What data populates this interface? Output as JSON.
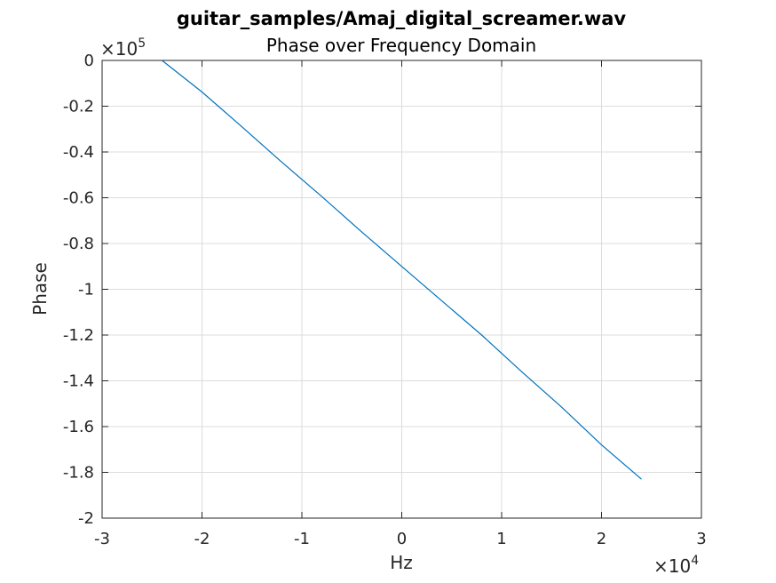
{
  "chart_data": {
    "type": "line",
    "title": "guitar_samples/Amaj_digital_screamer.wav",
    "subtitle": "Phase over Frequency Domain",
    "xlabel": "Hz",
    "ylabel": "Phase",
    "xlim": [
      -30000,
      30000
    ],
    "ylim": [
      -200000,
      0
    ],
    "x_ticks": [
      -30000,
      -20000,
      -10000,
      0,
      10000,
      20000,
      30000
    ],
    "x_tick_labels": [
      "-3",
      "-2",
      "-1",
      "0",
      "1",
      "2",
      "3"
    ],
    "y_ticks": [
      0,
      -20000,
      -40000,
      -60000,
      -80000,
      -100000,
      -120000,
      -140000,
      -160000,
      -180000,
      -200000
    ],
    "y_tick_labels": [
      "0",
      "-0.2",
      "-0.4",
      "-0.6",
      "-0.8",
      "-1",
      "-1.2",
      "-1.4",
      "-1.6",
      "-1.8",
      "-2"
    ],
    "x_multiplier": {
      "base": "×10",
      "exponent": "4"
    },
    "y_multiplier": {
      "base": "×10",
      "exponent": "5"
    },
    "grid": true,
    "line_color": "#0072BD",
    "series": [
      {
        "x": [
          -24000,
          -20000,
          -16000,
          -12000,
          -8000,
          -4000,
          0,
          4000,
          8000,
          12000,
          16000,
          20000,
          24000
        ],
        "y": [
          0,
          -13800,
          -29000,
          -44500,
          -59500,
          -75000,
          -90000,
          -105000,
          -120000,
          -136000,
          -151500,
          -168000,
          -183000
        ]
      }
    ]
  }
}
